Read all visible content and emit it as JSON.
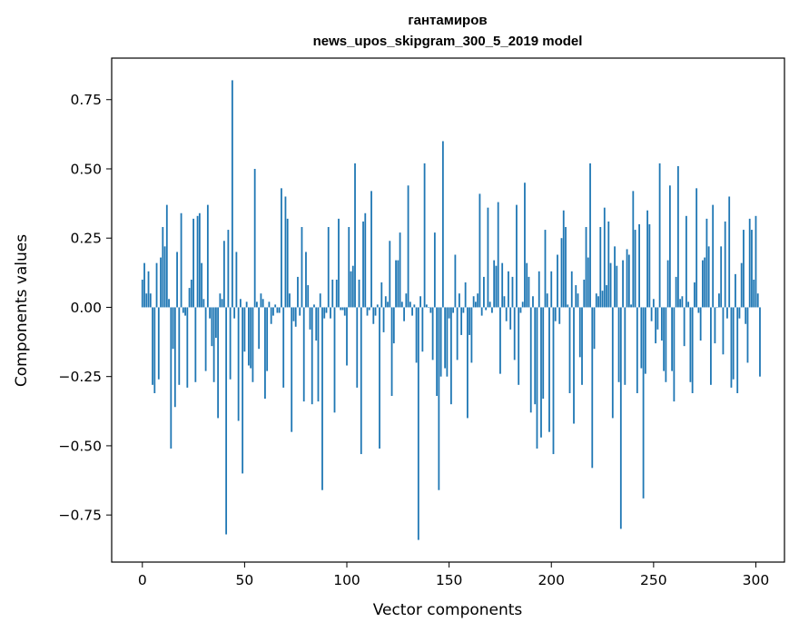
{
  "chart_data": {
    "type": "bar",
    "title": "гантамиров",
    "subtitle": "news_upos_skipgram_300_5_2019 model",
    "xlabel": "Vector components",
    "ylabel": "Components values",
    "xlim": [
      -15,
      314
    ],
    "ylim": [
      -0.92,
      0.9
    ],
    "xticks": [
      0,
      50,
      100,
      150,
      200,
      250,
      300
    ],
    "xtick_labels": [
      "0",
      "50",
      "100",
      "150",
      "200",
      "250",
      "300"
    ],
    "yticks": [
      0.75,
      0.5,
      0.25,
      0.0,
      -0.25,
      -0.5,
      -0.75
    ],
    "ytick_labels": [
      "0.75",
      "0.50",
      "0.25",
      "0.00",
      "−0.25",
      "−0.50",
      "−0.75"
    ],
    "grid": false,
    "color": "#1f77b4",
    "series": [
      {
        "values": [
          0.1,
          0.16,
          0.05,
          0.13,
          0.05,
          -0.28,
          -0.31,
          0.16,
          -0.26,
          0.18,
          0.29,
          0.22,
          0.37,
          0.03,
          -0.51,
          -0.15,
          -0.36,
          0.2,
          -0.28,
          0.34,
          -0.02,
          -0.03,
          -0.29,
          0.07,
          0.1,
          0.32,
          -0.27,
          0.33,
          0.34,
          0.16,
          0.03,
          -0.23,
          0.37,
          -0.04,
          -0.14,
          -0.27,
          -0.11,
          -0.4,
          0.05,
          0.03,
          0.24,
          -0.82,
          0.28,
          -0.26,
          0.82,
          -0.04,
          0.2,
          -0.41,
          0.03,
          -0.6,
          -0.16,
          0.02,
          -0.21,
          -0.22,
          -0.27,
          0.5,
          0.02,
          -0.15,
          0.05,
          0.03,
          -0.33,
          -0.23,
          0.02,
          -0.06,
          -0.03,
          0.01,
          -0.02,
          -0.02,
          0.43,
          -0.29,
          0.4,
          0.32,
          0.05,
          -0.45,
          -0.05,
          -0.07,
          0.11,
          -0.03,
          0.29,
          -0.34,
          0.2,
          0.08,
          -0.08,
          -0.35,
          0.01,
          -0.12,
          -0.34,
          0.05,
          -0.66,
          -0.04,
          -0.02,
          0.29,
          -0.04,
          0.1,
          -0.38,
          0.1,
          0.32,
          -0.01,
          -0.01,
          -0.03,
          -0.21,
          0.29,
          0.13,
          0.15,
          0.52,
          -0.29,
          0.1,
          -0.53,
          0.31,
          0.34,
          -0.03,
          -0.01,
          0.42,
          -0.06,
          -0.03,
          0.01,
          -0.51,
          0.09,
          -0.09,
          0.04,
          0.02,
          0.24,
          -0.32,
          -0.13,
          0.17,
          0.17,
          0.27,
          0.02,
          -0.05,
          0.05,
          0.44,
          0.02,
          -0.03,
          0.01,
          -0.2,
          -0.84,
          0.04,
          -0.16,
          0.52,
          0.01,
          0.0,
          -0.02,
          -0.19,
          0.27,
          -0.32,
          -0.66,
          -0.25,
          0.6,
          -0.22,
          -0.25,
          -0.04,
          -0.35,
          -0.02,
          0.19,
          -0.19,
          0.05,
          -0.1,
          -0.02,
          0.09,
          -0.4,
          -0.1,
          -0.2,
          0.04,
          0.02,
          0.05,
          0.41,
          -0.03,
          0.11,
          -0.01,
          0.36,
          0.02,
          -0.02,
          0.17,
          0.15,
          0.38,
          -0.24,
          0.16,
          0.04,
          -0.05,
          0.13,
          -0.08,
          0.11,
          -0.19,
          0.37,
          -0.28,
          -0.02,
          0.02,
          0.45,
          0.16,
          0.11,
          -0.38,
          0.04,
          -0.35,
          -0.51,
          0.13,
          -0.47,
          -0.33,
          0.28,
          0.05,
          -0.45,
          0.13,
          -0.53,
          -0.05,
          0.19,
          -0.06,
          0.25,
          0.35,
          0.29,
          0.01,
          -0.31,
          0.13,
          -0.42,
          0.08,
          0.05,
          -0.18,
          -0.28,
          0.1,
          0.29,
          0.18,
          0.52,
          -0.58,
          -0.15,
          0.05,
          0.04,
          0.29,
          0.06,
          0.36,
          0.08,
          0.31,
          0.16,
          -0.4,
          0.22,
          0.15,
          -0.27,
          -0.8,
          0.17,
          -0.28,
          0.21,
          0.19,
          0.01,
          0.42,
          0.28,
          -0.31,
          0.3,
          -0.22,
          -0.69,
          -0.24,
          0.35,
          0.3,
          -0.05,
          0.03,
          -0.13,
          -0.08,
          0.52,
          -0.12,
          -0.23,
          -0.27,
          0.17,
          0.44,
          -0.23,
          -0.34,
          0.11,
          0.51,
          0.03,
          0.04,
          -0.14,
          0.33,
          0.02,
          -0.27,
          -0.31,
          0.09,
          0.43,
          -0.02,
          -0.12,
          0.17,
          0.18,
          0.32,
          0.22,
          -0.28,
          0.37,
          -0.13,
          0.0,
          0.05,
          0.22,
          -0.17,
          0.31,
          -0.04,
          0.4,
          -0.29,
          -0.26,
          0.12,
          -0.31,
          -0.04,
          0.16,
          0.28,
          -0.06,
          -0.2,
          0.32,
          0.28,
          0.1,
          0.33,
          0.05,
          -0.25
        ]
      }
    ]
  }
}
